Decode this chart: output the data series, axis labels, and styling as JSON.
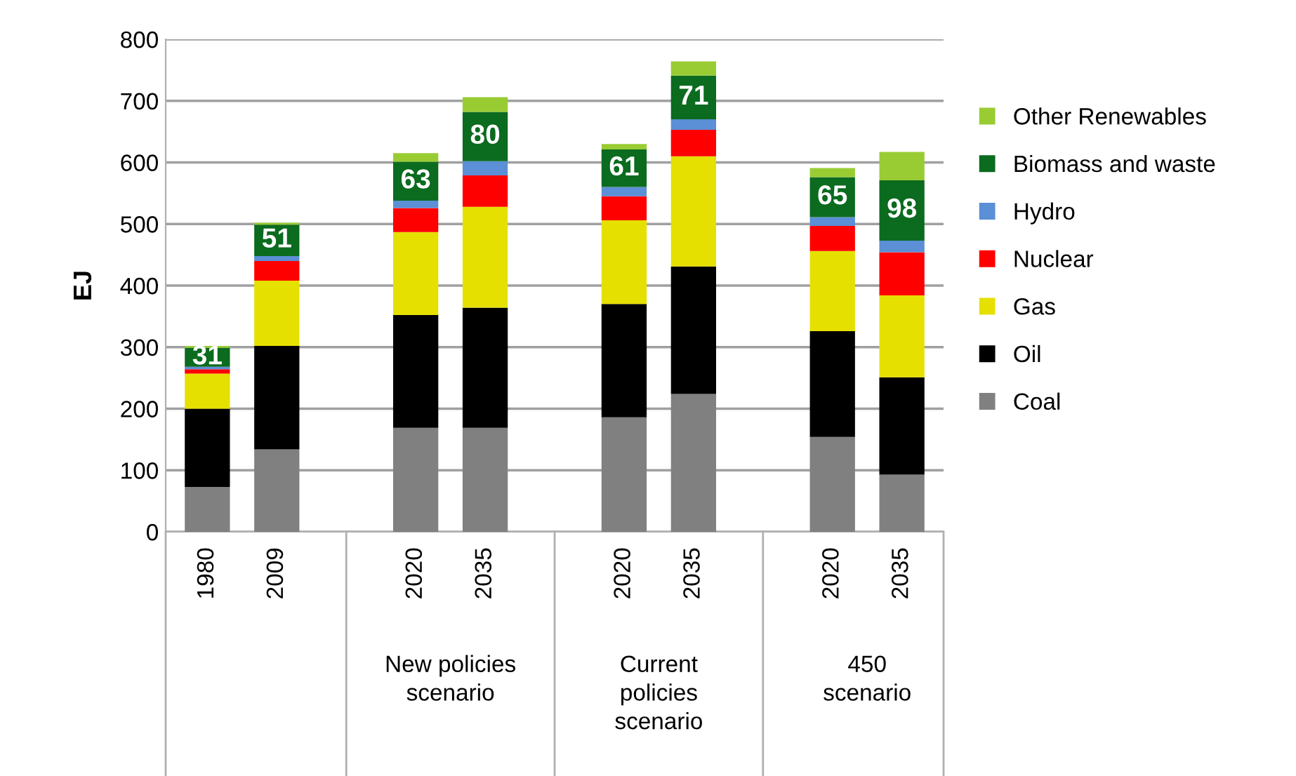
{
  "chart_data": {
    "type": "bar",
    "stacked": true,
    "ylabel": "EJ",
    "categories": [
      "1980",
      "2009",
      null,
      "2020",
      "2035",
      null,
      "2020",
      "2035",
      null,
      "2020",
      "2035"
    ],
    "series": [
      {
        "name": "Coal",
        "color": "#808080",
        "values": [
          73,
          134,
          null,
          169,
          169,
          null,
          186,
          224,
          null,
          154,
          93
        ]
      },
      {
        "name": "Oil",
        "color": "#000000",
        "values": [
          127,
          168,
          null,
          183,
          195,
          null,
          184,
          207,
          null,
          172,
          158
        ]
      },
      {
        "name": "Gas",
        "color": "#e6e000",
        "values": [
          57,
          106,
          null,
          135,
          164,
          null,
          136,
          179,
          null,
          130,
          133
        ]
      },
      {
        "name": "Nuclear",
        "color": "#ff0000",
        "values": [
          7,
          32,
          null,
          39,
          51,
          null,
          39,
          43,
          null,
          41,
          70
        ]
      },
      {
        "name": "Hydro",
        "color": "#5b8fd6",
        "values": [
          4,
          8,
          null,
          12,
          23,
          null,
          15,
          17,
          null,
          14,
          19
        ]
      },
      {
        "name": "Biomass and waste",
        "color": "#0b6b1f",
        "values": [
          31,
          51,
          null,
          63,
          80,
          null,
          61,
          71,
          null,
          65,
          98
        ],
        "value_labels": [
          "31",
          "51",
          null,
          "63",
          "80",
          null,
          "61",
          "71",
          null,
          "65",
          "98"
        ]
      },
      {
        "name": "Other Renewables",
        "color": "#99cc33",
        "values": [
          3,
          3,
          null,
          14,
          24,
          null,
          9,
          23,
          null,
          15,
          46
        ]
      }
    ],
    "ylim": [
      0,
      800
    ],
    "yticks": [
      0,
      100,
      200,
      300,
      400,
      500,
      600,
      700,
      800
    ],
    "grid": "y",
    "legend": "right",
    "annotations": [
      "New policies\nscenario",
      "Current\npolicies\nscenario",
      "450\nscenario"
    ]
  }
}
